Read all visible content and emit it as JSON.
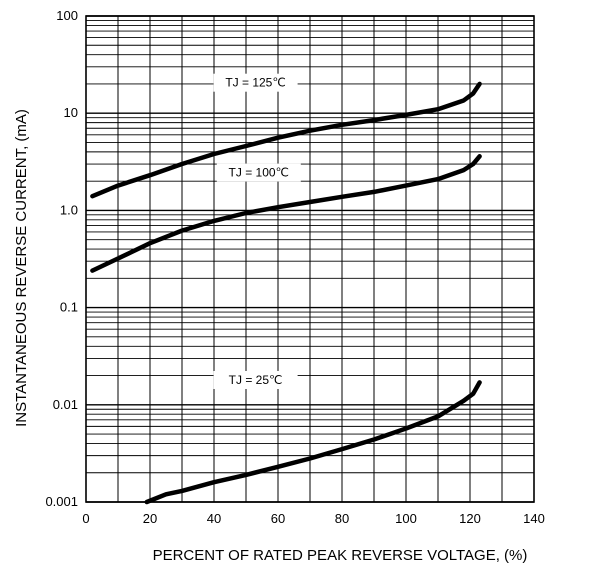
{
  "chart_data": {
    "type": "line",
    "xlabel": "PERCENT OF RATED PEAK REVERSE VOLTAGE, (%)",
    "ylabel": "INSTANTANEOUS REVERSE CURRENT, (mA)",
    "xlim": [
      0,
      140
    ],
    "ylim": [
      0.001,
      100
    ],
    "yscale": "log",
    "grid": true,
    "x_ticks": [
      "0",
      "20",
      "40",
      "60",
      "80",
      "100",
      "120",
      "140"
    ],
    "y_ticks": [
      "0.001",
      "0.01",
      "0.1",
      "1.0",
      "10",
      "100"
    ],
    "series": [
      {
        "name": "TJ = 125℃",
        "points": [
          [
            2,
            1.4
          ],
          [
            10,
            1.8
          ],
          [
            20,
            2.3
          ],
          [
            30,
            3.0
          ],
          [
            40,
            3.8
          ],
          [
            50,
            4.6
          ],
          [
            60,
            5.6
          ],
          [
            70,
            6.6
          ],
          [
            80,
            7.6
          ],
          [
            90,
            8.5
          ],
          [
            100,
            9.6
          ],
          [
            110,
            11
          ],
          [
            118,
            13.5
          ],
          [
            121,
            16
          ],
          [
            123,
            20
          ]
        ]
      },
      {
        "name": "TJ = 100℃",
        "points": [
          [
            2,
            0.24
          ],
          [
            10,
            0.32
          ],
          [
            20,
            0.46
          ],
          [
            30,
            0.62
          ],
          [
            40,
            0.78
          ],
          [
            50,
            0.94
          ],
          [
            60,
            1.08
          ],
          [
            70,
            1.22
          ],
          [
            80,
            1.38
          ],
          [
            90,
            1.55
          ],
          [
            100,
            1.8
          ],
          [
            110,
            2.1
          ],
          [
            118,
            2.6
          ],
          [
            121,
            3.0
          ],
          [
            123,
            3.6
          ]
        ]
      },
      {
        "name": "TJ = 25℃",
        "points": [
          [
            19,
            0.001
          ],
          [
            25,
            0.0012
          ],
          [
            30,
            0.0013
          ],
          [
            40,
            0.0016
          ],
          [
            50,
            0.0019
          ],
          [
            60,
            0.0023
          ],
          [
            70,
            0.0028
          ],
          [
            80,
            0.0035
          ],
          [
            90,
            0.0044
          ],
          [
            100,
            0.0057
          ],
          [
            110,
            0.0076
          ],
          [
            118,
            0.011
          ],
          [
            121,
            0.013
          ],
          [
            123,
            0.017
          ]
        ]
      }
    ]
  }
}
